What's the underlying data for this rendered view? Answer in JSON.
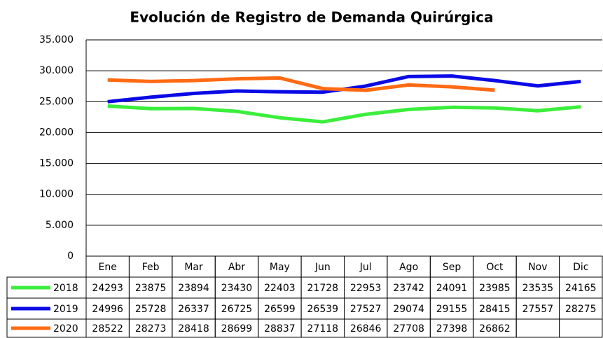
{
  "chart_data": {
    "type": "line",
    "title": "Evolución de Registro de Demanda Quirúrgica",
    "categories": [
      "Ene",
      "Feb",
      "Mar",
      "Abr",
      "May",
      "Jun",
      "Jul",
      "Ago",
      "Sep",
      "Oct",
      "Nov",
      "Dic"
    ],
    "series": [
      {
        "name": "2018",
        "color": "#3cee3c",
        "values": [
          24293,
          23875,
          23894,
          23430,
          22403,
          21728,
          22953,
          23742,
          24091,
          23985,
          23535,
          24165
        ]
      },
      {
        "name": "2019",
        "color": "#0a0ae6",
        "values": [
          24996,
          25728,
          26337,
          26725,
          26599,
          26539,
          27527,
          29074,
          29155,
          28415,
          27557,
          28275
        ]
      },
      {
        "name": "2020",
        "color": "#ff6a13",
        "values": [
          28522,
          28273,
          28418,
          28699,
          28837,
          27118,
          26846,
          27708,
          27398,
          26862,
          null,
          null
        ]
      }
    ],
    "ylim": [
      0,
      35000
    ],
    "yticks": [
      0,
      {
        "value": 5000,
        "label": "5.000"
      },
      {
        "value": 10000,
        "label": "10.000"
      },
      {
        "value": 15000,
        "label": "15.000"
      },
      {
        "value": 20000,
        "label": "20.000"
      },
      {
        "value": 25000,
        "label": "25.000"
      },
      {
        "value": 30000,
        "label": "30.000"
      },
      {
        "value": 35000,
        "label": "35.000"
      }
    ],
    "grid": true
  }
}
